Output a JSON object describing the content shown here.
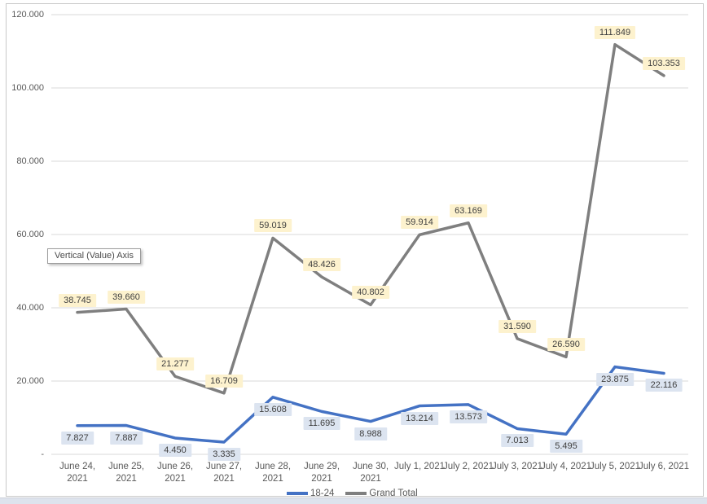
{
  "tooltip": {
    "text": "Vertical (Value) Axis"
  },
  "legend": {
    "items": [
      {
        "label": "18-24",
        "color": "#4472C4"
      },
      {
        "label": "Grand Total",
        "color": "#7F7F7F"
      }
    ]
  },
  "colors": {
    "gridline": "#d9d9d9",
    "axis_text": "#595959",
    "label_text": "#3f3f3f",
    "bottom_strip": "#dde3ed"
  },
  "chart_data": {
    "type": "line",
    "title": "",
    "xlabel": "",
    "ylabel": "",
    "grid": true,
    "legend_position": "bottom",
    "categories": [
      "June 24, 2021",
      "June 25, 2021",
      "June 26, 2021",
      "June 27, 2021",
      "June 28, 2021",
      "June 29, 2021",
      "June 30, 2021",
      "July 1, 2021",
      "July 2, 2021",
      "July 3, 2021",
      "July 4, 2021",
      "July 5, 2021",
      "July 6, 2021"
    ],
    "category_label_lines": [
      "June 24,\n2021",
      "June 25,\n2021",
      "June 26,\n2021",
      "June 27,\n2021",
      "June 28,\n2021",
      "June 29,\n2021",
      "June 30,\n2021",
      "July 1, 2021",
      "July 2, 2021",
      "July 3, 2021",
      "July 4, 2021",
      "July 5, 2021",
      "July 6, 2021"
    ],
    "series": [
      {
        "name": "18-24",
        "color": "#4472C4",
        "label_bg": "#dce4f0",
        "label_position": "below",
        "values": [
          7827,
          7887,
          4450,
          3335,
          15608,
          11695,
          8988,
          13214,
          13573,
          7013,
          5495,
          23875,
          22116
        ],
        "labels": [
          "7.827",
          "7.887",
          "4.450",
          "3.335",
          "15.608",
          "11.695",
          "8.988",
          "13.214",
          "13.573",
          "7.013",
          "5.495",
          "23.875",
          "22.116"
        ]
      },
      {
        "name": "Grand Total",
        "color": "#7F7F7F",
        "label_bg": "#fdf2ce",
        "label_position": "above",
        "values": [
          38745,
          39660,
          21277,
          16709,
          59019,
          48426,
          40802,
          59914,
          63169,
          31590,
          26590,
          111849,
          103353
        ],
        "labels": [
          "38.745",
          "39.660",
          "21.277",
          "16.709",
          "59.019",
          "48.426",
          "40.802",
          "59.914",
          "63.169",
          "31.590",
          "26.590",
          "111.849",
          "103.353"
        ]
      }
    ],
    "y_axis": {
      "min": 0,
      "max": 120000,
      "ticks": [
        {
          "value": 120000,
          "label": "120.000"
        },
        {
          "value": 100000,
          "label": "100.000"
        },
        {
          "value": 80000,
          "label": "80.000"
        },
        {
          "value": 60000,
          "label": "60.000"
        },
        {
          "value": 40000,
          "label": "40.000"
        },
        {
          "value": 20000,
          "label": "20.000"
        },
        {
          "value": 0,
          "label": "-"
        }
      ]
    }
  }
}
